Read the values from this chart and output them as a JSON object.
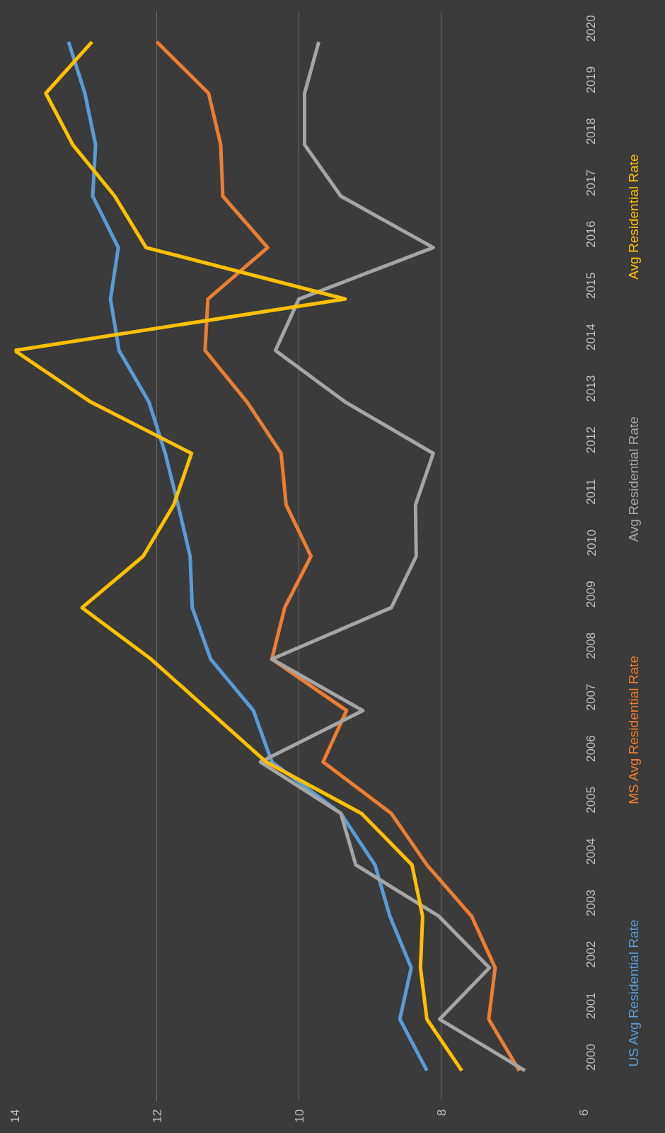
{
  "chart_data": {
    "type": "line",
    "categories": [
      "2020",
      "2019",
      "2018",
      "2017",
      "2016",
      "2015",
      "2014",
      "2013",
      "2012",
      "2011",
      "2010",
      "2009",
      "2008",
      "2007",
      "2006",
      "2005",
      "2004",
      "2003",
      "2002",
      "2001",
      "2000"
    ],
    "orientation": "horizontal",
    "xlim": [
      14,
      6
    ],
    "xticks": [
      6,
      8,
      10,
      12,
      14
    ],
    "grid": "x",
    "legend": "right",
    "line_style": "solid",
    "marker": "none",
    "series": [
      {
        "name": "US Avg Residential Rate",
        "color": "#5b9bd5",
        "values": [
          13.24,
          13.01,
          12.86,
          12.9,
          12.54,
          12.65,
          12.53,
          12.11,
          11.88,
          11.7,
          11.53,
          11.5,
          11.24,
          10.64,
          10.38,
          9.41,
          8.93,
          8.72,
          8.42,
          8.58,
          8.2
        ]
      },
      {
        "name": "MS Avg Residential Rate",
        "color": "#ed7d31",
        "values": [
          12.0,
          11.27,
          11.1,
          11.07,
          10.44,
          11.28,
          11.32,
          10.73,
          10.25,
          10.18,
          9.83,
          10.2,
          10.38,
          9.33,
          9.66,
          8.7,
          8.2,
          7.57,
          7.24,
          7.33,
          6.9
        ]
      },
      {
        "name": "Avg Residential Rate",
        "color": "#a5a5a5",
        "values": [
          9.72,
          9.92,
          9.92,
          9.41,
          8.11,
          10.0,
          10.33,
          9.35,
          8.11,
          8.36,
          8.35,
          8.7,
          10.38,
          9.1,
          10.54,
          9.41,
          9.2,
          8.03,
          7.32,
          8.02,
          6.82
        ]
      },
      {
        "name": "Avg Residential Rate",
        "color": "#ffc000",
        "values": [
          12.91,
          13.56,
          13.18,
          12.59,
          12.15,
          9.35,
          14.0,
          12.93,
          11.51,
          11.76,
          12.19,
          13.05,
          12.08,
          11.27,
          10.46,
          9.12,
          8.41,
          8.26,
          8.29,
          8.2,
          7.71
        ]
      }
    ]
  }
}
